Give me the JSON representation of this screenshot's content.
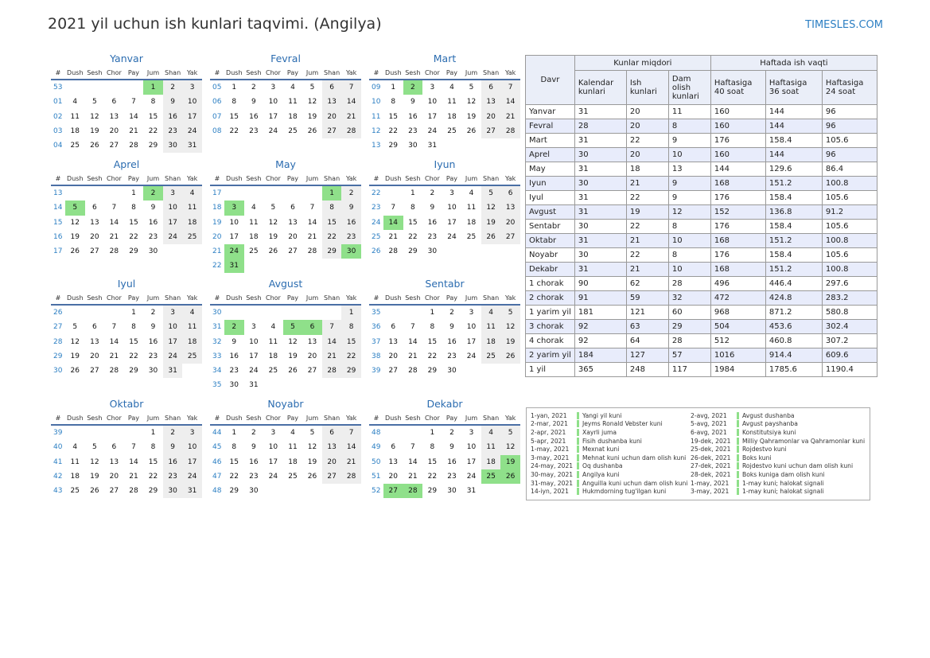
{
  "title": "2021 yil uchun ish kunlari taqvimi. (Angilya)",
  "site": "TIMESLES.COM",
  "weekday_header": [
    "#",
    "Dush",
    "Sesh",
    "Chor",
    "Pay",
    "Jum",
    "Shan",
    "Yak"
  ],
  "months": [
    {
      "name": "Yanvar",
      "weeks": [
        {
          "wk": "53",
          "days": [
            "",
            "",
            "",
            "",
            "1",
            "2",
            "3"
          ]
        },
        {
          "wk": "01",
          "days": [
            "4",
            "5",
            "6",
            "7",
            "8",
            "9",
            "10"
          ]
        },
        {
          "wk": "02",
          "days": [
            "11",
            "12",
            "13",
            "14",
            "15",
            "16",
            "17"
          ]
        },
        {
          "wk": "03",
          "days": [
            "18",
            "19",
            "20",
            "21",
            "22",
            "23",
            "24"
          ]
        },
        {
          "wk": "04",
          "days": [
            "25",
            "26",
            "27",
            "28",
            "29",
            "30",
            "31"
          ]
        }
      ],
      "holidays": [
        "1"
      ]
    },
    {
      "name": "Fevral",
      "weeks": [
        {
          "wk": "05",
          "days": [
            "1",
            "2",
            "3",
            "4",
            "5",
            "6",
            "7"
          ]
        },
        {
          "wk": "06",
          "days": [
            "8",
            "9",
            "10",
            "11",
            "12",
            "13",
            "14"
          ]
        },
        {
          "wk": "07",
          "days": [
            "15",
            "16",
            "17",
            "18",
            "19",
            "20",
            "21"
          ]
        },
        {
          "wk": "08",
          "days": [
            "22",
            "23",
            "24",
            "25",
            "26",
            "27",
            "28"
          ]
        }
      ],
      "holidays": []
    },
    {
      "name": "Mart",
      "weeks": [
        {
          "wk": "09",
          "days": [
            "1",
            "2",
            "3",
            "4",
            "5",
            "6",
            "7"
          ]
        },
        {
          "wk": "10",
          "days": [
            "8",
            "9",
            "10",
            "11",
            "12",
            "13",
            "14"
          ]
        },
        {
          "wk": "11",
          "days": [
            "15",
            "16",
            "17",
            "18",
            "19",
            "20",
            "21"
          ]
        },
        {
          "wk": "12",
          "days": [
            "22",
            "23",
            "24",
            "25",
            "26",
            "27",
            "28"
          ]
        },
        {
          "wk": "13",
          "days": [
            "29",
            "30",
            "31",
            "",
            "",
            "",
            ""
          ]
        }
      ],
      "holidays": [
        "2"
      ]
    },
    {
      "name": "Aprel",
      "weeks": [
        {
          "wk": "13",
          "days": [
            "",
            "",
            "",
            "1",
            "2",
            "3",
            "4"
          ]
        },
        {
          "wk": "14",
          "days": [
            "5",
            "6",
            "7",
            "8",
            "9",
            "10",
            "11"
          ]
        },
        {
          "wk": "15",
          "days": [
            "12",
            "13",
            "14",
            "15",
            "16",
            "17",
            "18"
          ]
        },
        {
          "wk": "16",
          "days": [
            "19",
            "20",
            "21",
            "22",
            "23",
            "24",
            "25"
          ]
        },
        {
          "wk": "17",
          "days": [
            "26",
            "27",
            "28",
            "29",
            "30",
            "",
            ""
          ]
        }
      ],
      "holidays": [
        "2",
        "5"
      ]
    },
    {
      "name": "May",
      "weeks": [
        {
          "wk": "17",
          "days": [
            "",
            "",
            "",
            "",
            "",
            "1",
            "2"
          ]
        },
        {
          "wk": "18",
          "days": [
            "3",
            "4",
            "5",
            "6",
            "7",
            "8",
            "9"
          ]
        },
        {
          "wk": "19",
          "days": [
            "10",
            "11",
            "12",
            "13",
            "14",
            "15",
            "16"
          ]
        },
        {
          "wk": "20",
          "days": [
            "17",
            "18",
            "19",
            "20",
            "21",
            "22",
            "23"
          ]
        },
        {
          "wk": "21",
          "days": [
            "24",
            "25",
            "26",
            "27",
            "28",
            "29",
            "30"
          ]
        },
        {
          "wk": "22",
          "days": [
            "31",
            "",
            "",
            "",
            "",
            "",
            ""
          ]
        }
      ],
      "holidays": [
        "1",
        "3",
        "24",
        "30",
        "31"
      ]
    },
    {
      "name": "Iyun",
      "weeks": [
        {
          "wk": "22",
          "days": [
            "",
            "1",
            "2",
            "3",
            "4",
            "5",
            "6"
          ]
        },
        {
          "wk": "23",
          "days": [
            "7",
            "8",
            "9",
            "10",
            "11",
            "12",
            "13"
          ]
        },
        {
          "wk": "24",
          "days": [
            "14",
            "15",
            "16",
            "17",
            "18",
            "19",
            "20"
          ]
        },
        {
          "wk": "25",
          "days": [
            "21",
            "22",
            "23",
            "24",
            "25",
            "26",
            "27"
          ]
        },
        {
          "wk": "26",
          "days": [
            "28",
            "29",
            "30",
            "",
            "",
            "",
            ""
          ]
        }
      ],
      "holidays": [
        "14"
      ]
    },
    {
      "name": "Iyul",
      "weeks": [
        {
          "wk": "26",
          "days": [
            "",
            "",
            "",
            "1",
            "2",
            "3",
            "4"
          ]
        },
        {
          "wk": "27",
          "days": [
            "5",
            "6",
            "7",
            "8",
            "9",
            "10",
            "11"
          ]
        },
        {
          "wk": "28",
          "days": [
            "12",
            "13",
            "14",
            "15",
            "16",
            "17",
            "18"
          ]
        },
        {
          "wk": "29",
          "days": [
            "19",
            "20",
            "21",
            "22",
            "23",
            "24",
            "25"
          ]
        },
        {
          "wk": "30",
          "days": [
            "26",
            "27",
            "28",
            "29",
            "30",
            "31",
            ""
          ]
        }
      ],
      "holidays": []
    },
    {
      "name": "Avgust",
      "weeks": [
        {
          "wk": "30",
          "days": [
            "",
            "",
            "",
            "",
            "",
            "",
            "1"
          ]
        },
        {
          "wk": "31",
          "days": [
            "2",
            "3",
            "4",
            "5",
            "6",
            "7",
            "8"
          ]
        },
        {
          "wk": "32",
          "days": [
            "9",
            "10",
            "11",
            "12",
            "13",
            "14",
            "15"
          ]
        },
        {
          "wk": "33",
          "days": [
            "16",
            "17",
            "18",
            "19",
            "20",
            "21",
            "22"
          ]
        },
        {
          "wk": "34",
          "days": [
            "23",
            "24",
            "25",
            "26",
            "27",
            "28",
            "29"
          ]
        },
        {
          "wk": "35",
          "days": [
            "30",
            "31",
            "",
            "",
            "",
            "",
            ""
          ]
        }
      ],
      "holidays": [
        "2",
        "5",
        "6"
      ]
    },
    {
      "name": "Sentabr",
      "weeks": [
        {
          "wk": "35",
          "days": [
            "",
            "",
            "1",
            "2",
            "3",
            "4",
            "5"
          ]
        },
        {
          "wk": "36",
          "days": [
            "6",
            "7",
            "8",
            "9",
            "10",
            "11",
            "12"
          ]
        },
        {
          "wk": "37",
          "days": [
            "13",
            "14",
            "15",
            "16",
            "17",
            "18",
            "19"
          ]
        },
        {
          "wk": "38",
          "days": [
            "20",
            "21",
            "22",
            "23",
            "24",
            "25",
            "26"
          ]
        },
        {
          "wk": "39",
          "days": [
            "27",
            "28",
            "29",
            "30",
            "",
            "",
            ""
          ]
        }
      ],
      "holidays": []
    },
    {
      "name": "Oktabr",
      "weeks": [
        {
          "wk": "39",
          "days": [
            "",
            "",
            "",
            "",
            "1",
            "2",
            "3"
          ]
        },
        {
          "wk": "40",
          "days": [
            "4",
            "5",
            "6",
            "7",
            "8",
            "9",
            "10"
          ]
        },
        {
          "wk": "41",
          "days": [
            "11",
            "12",
            "13",
            "14",
            "15",
            "16",
            "17"
          ]
        },
        {
          "wk": "42",
          "days": [
            "18",
            "19",
            "20",
            "21",
            "22",
            "23",
            "24"
          ]
        },
        {
          "wk": "43",
          "days": [
            "25",
            "26",
            "27",
            "28",
            "29",
            "30",
            "31"
          ]
        }
      ],
      "holidays": []
    },
    {
      "name": "Noyabr",
      "weeks": [
        {
          "wk": "44",
          "days": [
            "1",
            "2",
            "3",
            "4",
            "5",
            "6",
            "7"
          ]
        },
        {
          "wk": "45",
          "days": [
            "8",
            "9",
            "10",
            "11",
            "12",
            "13",
            "14"
          ]
        },
        {
          "wk": "46",
          "days": [
            "15",
            "16",
            "17",
            "18",
            "19",
            "20",
            "21"
          ]
        },
        {
          "wk": "47",
          "days": [
            "22",
            "23",
            "24",
            "25",
            "26",
            "27",
            "28"
          ]
        },
        {
          "wk": "48",
          "days": [
            "29",
            "30",
            "",
            "",
            "",
            "",
            ""
          ]
        }
      ],
      "holidays": []
    },
    {
      "name": "Dekabr",
      "weeks": [
        {
          "wk": "48",
          "days": [
            "",
            "",
            "1",
            "2",
            "3",
            "4",
            "5"
          ]
        },
        {
          "wk": "49",
          "days": [
            "6",
            "7",
            "8",
            "9",
            "10",
            "11",
            "12"
          ]
        },
        {
          "wk": "50",
          "days": [
            "13",
            "14",
            "15",
            "16",
            "17",
            "18",
            "19"
          ]
        },
        {
          "wk": "51",
          "days": [
            "20",
            "21",
            "22",
            "23",
            "24",
            "25",
            "26"
          ]
        },
        {
          "wk": "52",
          "days": [
            "27",
            "28",
            "29",
            "30",
            "31",
            "",
            ""
          ]
        }
      ],
      "holidays": [
        "19",
        "25",
        "26",
        "27",
        "28"
      ]
    }
  ],
  "summary": {
    "group_counts": "Kunlar miqdori",
    "group_hours": "Haftada ish vaqti",
    "col_period": "Davr",
    "columns": [
      "Kalendar kunlari",
      "Ish kunlari",
      "Dam olish kunlari",
      "Haftasiga 40 soat",
      "Haftasiga 36 soat",
      "Haftasiga 24 soat"
    ],
    "rows": [
      [
        "Yanvar",
        "31",
        "20",
        "11",
        "160",
        "144",
        "96"
      ],
      [
        "Fevral",
        "28",
        "20",
        "8",
        "160",
        "144",
        "96"
      ],
      [
        "Mart",
        "31",
        "22",
        "9",
        "176",
        "158.4",
        "105.6"
      ],
      [
        "Aprel",
        "30",
        "20",
        "10",
        "160",
        "144",
        "96"
      ],
      [
        "May",
        "31",
        "18",
        "13",
        "144",
        "129.6",
        "86.4"
      ],
      [
        "Iyun",
        "30",
        "21",
        "9",
        "168",
        "151.2",
        "100.8"
      ],
      [
        "Iyul",
        "31",
        "22",
        "9",
        "176",
        "158.4",
        "105.6"
      ],
      [
        "Avgust",
        "31",
        "19",
        "12",
        "152",
        "136.8",
        "91.2"
      ],
      [
        "Sentabr",
        "30",
        "22",
        "8",
        "176",
        "158.4",
        "105.6"
      ],
      [
        "Oktabr",
        "31",
        "21",
        "10",
        "168",
        "151.2",
        "100.8"
      ],
      [
        "Noyabr",
        "30",
        "22",
        "8",
        "176",
        "158.4",
        "105.6"
      ],
      [
        "Dekabr",
        "31",
        "21",
        "10",
        "168",
        "151.2",
        "100.8"
      ],
      [
        "1 chorak",
        "90",
        "62",
        "28",
        "496",
        "446.4",
        "297.6"
      ],
      [
        "2 chorak",
        "91",
        "59",
        "32",
        "472",
        "424.8",
        "283.2"
      ],
      [
        "1 yarim yil",
        "181",
        "121",
        "60",
        "968",
        "871.2",
        "580.8"
      ],
      [
        "3 chorak",
        "92",
        "63",
        "29",
        "504",
        "453.6",
        "302.4"
      ],
      [
        "4 chorak",
        "92",
        "64",
        "28",
        "512",
        "460.8",
        "307.2"
      ],
      [
        "2 yarim yil",
        "184",
        "127",
        "57",
        "1016",
        "914.4",
        "609.6"
      ],
      [
        "1 yil",
        "365",
        "248",
        "117",
        "1984",
        "1785.6",
        "1190.4"
      ]
    ]
  },
  "holidays": [
    {
      "date": "1-yan, 2021",
      "name": "Yangi yil kuni"
    },
    {
      "date": "2-mar, 2021",
      "name": "Jeyms Ronald Vebster kuni"
    },
    {
      "date": "2-apr, 2021",
      "name": "Xayrli juma"
    },
    {
      "date": "5-apr, 2021",
      "name": "Fisih dushanba kuni"
    },
    {
      "date": "1-may, 2021",
      "name": "Mexnat kuni"
    },
    {
      "date": "3-may, 2021",
      "name": "Mehnat kuni uchun dam olish kuni"
    },
    {
      "date": "24-may, 2021",
      "name": "Oq dushanba"
    },
    {
      "date": "30-may, 2021",
      "name": "Angilya kuni"
    },
    {
      "date": "31-may, 2021",
      "name": "Anguilla kuni uchun dam olish kuni"
    },
    {
      "date": "14-iyn, 2021",
      "name": "Hukmdorning tug'ilgan kuni"
    },
    {
      "date": "2-avg, 2021",
      "name": "Avgust dushanba"
    },
    {
      "date": "5-avg, 2021",
      "name": "Avgust payshanba"
    },
    {
      "date": "6-avg, 2021",
      "name": "Konstitutsiya kuni"
    },
    {
      "date": "19-dek, 2021",
      "name": "Milliy Qahramonlar va Qahramonlar kuni"
    },
    {
      "date": "25-dek, 2021",
      "name": "Rojdestvo kuni"
    },
    {
      "date": "26-dek, 2021",
      "name": "Boks kuni"
    },
    {
      "date": "27-dek, 2021",
      "name": "Rojdestvo kuni uchun dam olish kuni"
    },
    {
      "date": "28-dek, 2021",
      "name": "Boks kuniga dam olish kuni"
    },
    {
      "date": "1-may, 2021",
      "name": "1-may kuni; halokat signali"
    },
    {
      "date": "3-may, 2021",
      "name": "1-may kuni; halokat signali"
    }
  ]
}
